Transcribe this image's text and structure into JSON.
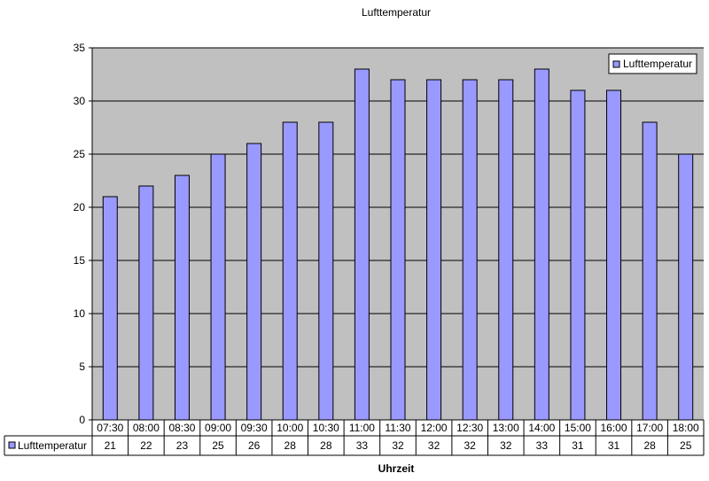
{
  "chart_data": {
    "type": "bar",
    "title": "Lufttemperatur",
    "xlabel": "Uhrzeit",
    "ylabel": "",
    "ylim": [
      0,
      35
    ],
    "yticks": [
      0,
      5,
      10,
      15,
      20,
      25,
      30,
      35
    ],
    "grid": true,
    "legend_position": "top-right",
    "categories": [
      "07:30",
      "08:00",
      "08:30",
      "09:00",
      "09:30",
      "10:00",
      "10:30",
      "11:00",
      "11:30",
      "12:00",
      "12:30",
      "13:00",
      "14:00",
      "15:00",
      "16:00",
      "17:00",
      "18:00"
    ],
    "series": [
      {
        "name": "Lufttemperatur",
        "values": [
          21,
          22,
          23,
          25,
          26,
          28,
          28,
          33,
          32,
          32,
          32,
          32,
          33,
          31,
          31,
          28,
          25
        ],
        "color": "#9999ff"
      }
    ],
    "data_table": true,
    "colors": {
      "plot_background": "#c0c0c0",
      "bar_fill": "#9999ff",
      "bar_stroke": "#000000",
      "gridline": "#000000"
    }
  }
}
